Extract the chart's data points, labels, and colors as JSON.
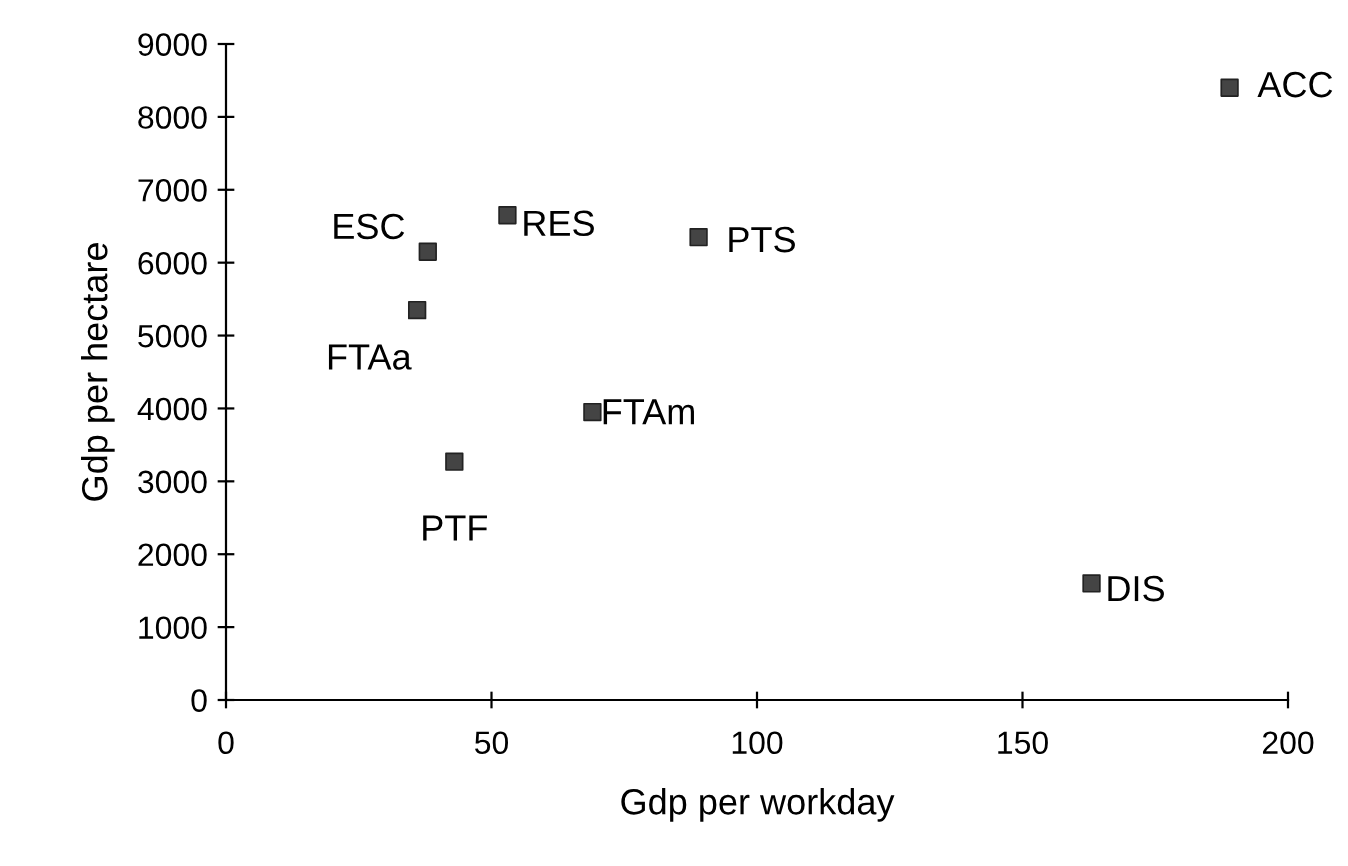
{
  "chart_data": {
    "type": "scatter",
    "xlabel": "Gdp per workday",
    "ylabel": "Gdp per hectare",
    "x": [
      189,
      38,
      53,
      89,
      36,
      69,
      43,
      163
    ],
    "values": [
      8400,
      6150,
      6650,
      6350,
      5350,
      3950,
      3270,
      1600
    ],
    "color": "#444444",
    "marker": "square",
    "grid": false,
    "legend": false,
    "xlim": [
      0,
      200
    ],
    "xticks": [
      0,
      50,
      100,
      150,
      200
    ],
    "ylim": [
      0,
      9000
    ],
    "yticks": [
      0,
      1000,
      2000,
      3000,
      4000,
      5000,
      6000,
      7000,
      8000,
      9000
    ],
    "annotations": [
      {
        "text": "ACC",
        "x": 189,
        "y": 8400
      },
      {
        "text": "ESC",
        "x": 38,
        "y": 6150
      },
      {
        "text": "RES",
        "x": 53,
        "y": 6650
      },
      {
        "text": "PTS",
        "x": 89,
        "y": 6350
      },
      {
        "text": "FTAa",
        "x": 36,
        "y": 5350
      },
      {
        "text": "FTAm",
        "x": 69,
        "y": 3950
      },
      {
        "text": "PTF",
        "x": 43,
        "y": 3270
      },
      {
        "text": "DIS",
        "x": 163,
        "y": 1600
      }
    ]
  }
}
